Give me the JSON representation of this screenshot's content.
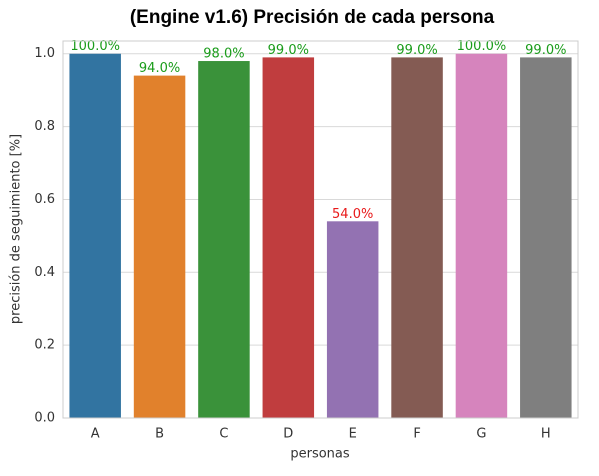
{
  "chart_data": {
    "type": "bar",
    "title": "(Engine v1.6) Precisión de cada persona",
    "xlabel": "personas",
    "ylabel": "precisión de seguimiento [%]",
    "categories": [
      "A",
      "B",
      "C",
      "D",
      "E",
      "F",
      "G",
      "H"
    ],
    "values": [
      1.0,
      0.94,
      0.98,
      0.99,
      0.54,
      0.99,
      1.0,
      0.99
    ],
    "value_labels": [
      "100.0%",
      "94.0%",
      "98.0%",
      "99.0%",
      "54.0%",
      "99.0%",
      "100.0%",
      "99.0%"
    ],
    "colors": [
      "#3274a1",
      "#e1812c",
      "#3a923a",
      "#c03d3e",
      "#9372b2",
      "#845b53",
      "#d684bd",
      "#7f7f7f"
    ],
    "label_colors": [
      "#1a9c1a",
      "#1a9c1a",
      "#1a9c1a",
      "#1a9c1a",
      "#e8191a",
      "#1a9c1a",
      "#1a9c1a",
      "#1a9c1a"
    ],
    "ylim": [
      0,
      1.035
    ],
    "yticks": [
      {
        "value": 0,
        "label": "0.0"
      },
      0.2,
      0.4,
      0.6,
      0.8,
      {
        "value": 1,
        "label": "1.0"
      }
    ],
    "grid": true
  }
}
